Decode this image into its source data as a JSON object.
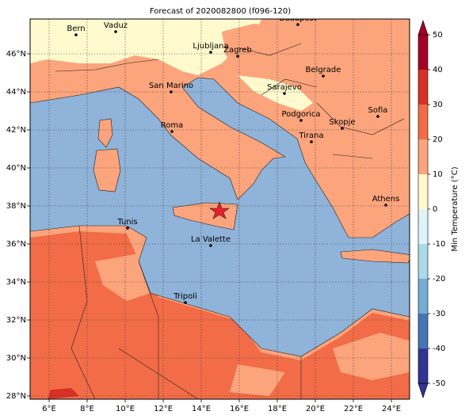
{
  "title": "Forecast of 2020082800 (f096-120)",
  "lon_ticks": [
    "6°E",
    "8°E",
    "10°E",
    "12°E",
    "14°E",
    "16°E",
    "18°E",
    "20°E",
    "22°E",
    "24°E"
  ],
  "lat_ticks": [
    "28°N",
    "30°N",
    "32°N",
    "34°N",
    "36°N",
    "38°N",
    "40°N",
    "42°N",
    "44°N",
    "46°N"
  ],
  "cities": [
    "Bern",
    "Vaduz",
    "Budapest",
    "Ljubljana",
    "Zagreb",
    "Belgrade",
    "San Marino",
    "Sarajevo",
    "Sofia",
    "Podgorica",
    "Skopje",
    "Roma",
    "Tirana",
    "Athens",
    "Tunis",
    "La Valette",
    "Tripoli"
  ],
  "colorbar": {
    "label": "Min Temperature (°C)",
    "ticks": [
      -50,
      -40,
      -30,
      -20,
      -10,
      0,
      10,
      20,
      30,
      40,
      50
    ],
    "colors": [
      "#313695",
      "#4575b4",
      "#74add1",
      "#abd9e9",
      "#e0f3f8",
      "#fffacd",
      "#fca47c",
      "#f26c47",
      "#d73027",
      "#a50026"
    ]
  }
}
